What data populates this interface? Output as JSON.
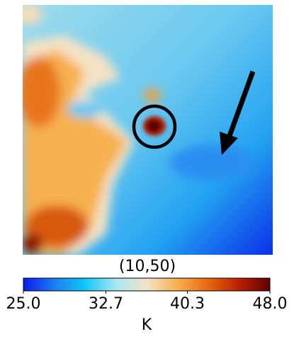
{
  "chart_data": {
    "type": "heatmap",
    "title": "(10,50)",
    "colorbar": {
      "lim": [
        25,
        48
      ],
      "ticks": [
        {
          "value": 25,
          "label": "25.0"
        },
        32.7,
        40.3,
        {
          "value": 48,
          "label": "48.0"
        }
      ],
      "label": "K",
      "colors": [
        "#0a1cf0",
        "#1a7ef0",
        "#10c8f8",
        "#a8e6f0",
        "#f2e4c8",
        "#f6b050",
        "#e8680e",
        "#b82000",
        "#600000"
      ]
    }
  }
}
